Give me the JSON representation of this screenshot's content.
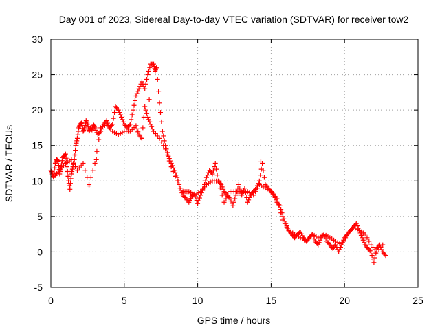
{
  "chart_data": {
    "type": "scatter",
    "title": "Day 001 of 2023, Sidereal Day-to-day VTEC variation (SDTVAR) for receiver tow2",
    "xlabel": "GPS time / hours",
    "ylabel": "SDTVAR / TECUs",
    "xlim": [
      0,
      25
    ],
    "ylim": [
      -5,
      30
    ],
    "grid": true,
    "marker": "+",
    "colors": {
      "series": "#ff0000",
      "grid": "#a0a0a0",
      "axis": "#000000"
    },
    "xticks": [
      {
        "value": 0,
        "label": "0"
      },
      {
        "value": 5,
        "label": "5"
      },
      {
        "value": 10,
        "label": "10"
      },
      {
        "value": 15,
        "label": "15"
      },
      {
        "value": 20,
        "label": "20"
      },
      {
        "value": 25,
        "label": "25"
      }
    ],
    "yticks": [
      {
        "value": -5,
        "label": "-5"
      },
      {
        "value": 0,
        "label": "0"
      },
      {
        "value": 5,
        "label": "5"
      },
      {
        "value": 10,
        "label": "10"
      },
      {
        "value": 15,
        "label": "15"
      },
      {
        "value": 20,
        "label": "20"
      },
      {
        "value": 25,
        "label": "25"
      },
      {
        "value": 30,
        "label": "30"
      }
    ],
    "series": [
      {
        "name": "SDTVAR",
        "x": [
          0.0,
          0.1,
          0.2,
          0.3,
          0.4,
          0.5,
          0.6,
          0.7,
          0.8,
          0.9,
          1.0,
          1.1,
          1.2,
          1.3,
          1.4,
          1.5,
          1.6,
          1.7,
          1.8,
          1.9,
          2.0,
          2.1,
          2.2,
          2.3,
          2.4,
          2.5,
          2.6,
          2.7,
          2.8,
          2.9,
          3.0,
          3.2,
          3.4,
          3.6,
          3.8,
          4.0,
          4.2,
          4.4,
          4.6,
          4.8,
          5.0,
          5.2,
          5.4,
          5.6,
          5.8,
          6.0,
          6.2,
          6.4,
          6.6,
          6.8,
          7.0,
          7.1,
          7.2,
          7.4,
          7.6,
          7.8,
          8.0,
          8.2,
          8.4,
          8.6,
          8.8,
          9.0,
          9.2,
          9.4,
          9.6,
          9.8,
          10.0,
          10.2,
          10.4,
          10.6,
          10.8,
          11.0,
          11.2,
          11.4,
          11.6,
          11.8,
          12.0,
          12.2,
          12.4,
          12.6,
          12.8,
          13.0,
          13.2,
          13.4,
          13.6,
          13.8,
          14.0,
          14.2,
          14.4,
          14.6,
          14.8,
          15.0,
          15.2,
          15.4,
          15.6,
          15.8,
          16.0,
          16.2,
          16.4,
          16.6,
          16.8,
          17.0,
          17.2,
          17.4,
          17.6,
          17.8,
          18.0,
          18.2,
          18.4,
          18.6,
          18.8,
          19.0,
          19.2,
          19.4,
          19.6,
          19.8,
          20.0,
          20.2,
          20.4,
          20.6,
          20.8,
          21.0,
          21.2,
          21.4,
          21.6,
          21.8,
          22.0,
          22.2,
          22.4,
          22.6,
          22.8,
          0.3,
          0.6,
          1.0,
          1.4,
          1.8,
          2.2,
          2.6,
          3.0,
          3.4,
          3.8,
          4.2,
          4.6,
          5.0,
          5.4,
          5.8,
          6.0,
          6.2,
          6.4,
          6.6,
          6.8,
          7.0,
          7.4,
          7.8,
          8.2,
          8.6,
          9.0,
          9.4,
          9.8,
          10.2,
          10.6,
          11.0,
          11.4,
          11.8,
          12.2,
          12.6,
          13.0,
          13.4,
          13.8,
          14.2,
          14.6,
          15.0,
          15.4,
          15.8,
          16.2,
          16.6,
          17.0,
          17.4,
          17.8,
          18.2,
          18.6,
          19.0,
          19.4,
          19.8,
          20.2,
          20.6,
          21.0,
          21.4,
          21.8,
          22.2,
          22.6,
          1.3,
          2.6,
          3.1,
          6.7,
          14.3
        ],
        "y": [
          11.5,
          11.0,
          10.5,
          12.5,
          13.0,
          12.8,
          11.0,
          12.0,
          13.3,
          13.5,
          13.8,
          12.0,
          10.0,
          9.0,
          11.0,
          12.0,
          13.0,
          15.0,
          16.0,
          17.5,
          18.0,
          18.2,
          17.0,
          17.5,
          18.5,
          18.0,
          17.0,
          17.5,
          17.2,
          18.0,
          17.5,
          16.5,
          17.0,
          18.0,
          18.5,
          17.5,
          18.0,
          20.5,
          20.0,
          19.0,
          18.0,
          17.5,
          18.0,
          20.0,
          22.0,
          23.0,
          24.0,
          23.0,
          25.0,
          26.5,
          26.5,
          25.5,
          26.0,
          21.0,
          17.0,
          15.0,
          13.5,
          12.5,
          11.5,
          10.5,
          9.0,
          8.0,
          7.5,
          7.0,
          7.8,
          8.2,
          6.8,
          8.0,
          9.0,
          10.5,
          11.5,
          11.0,
          12.5,
          10.0,
          9.5,
          8.5,
          8.0,
          7.5,
          6.5,
          8.0,
          9.5,
          8.0,
          9.0,
          7.0,
          8.0,
          8.5,
          9.0,
          10.0,
          12.5,
          9.5,
          9.0,
          8.5,
          8.0,
          7.0,
          6.5,
          5.0,
          4.0,
          3.0,
          2.5,
          2.0,
          2.5,
          2.8,
          2.0,
          1.5,
          2.0,
          2.5,
          1.5,
          1.0,
          2.0,
          2.5,
          1.5,
          1.0,
          0.5,
          1.0,
          0.0,
          1.0,
          2.0,
          2.5,
          3.0,
          3.5,
          4.0,
          3.0,
          2.0,
          1.0,
          0.5,
          0.0,
          -1.5,
          0.5,
          1.0,
          0.0,
          -0.5,
          10.8,
          11.5,
          12.5,
          13.0,
          11.5,
          12.5,
          9.5,
          12.5,
          17.5,
          18.0,
          17.0,
          16.5,
          17.0,
          17.0,
          17.8,
          16.5,
          16.0,
          20.5,
          19.0,
          18.0,
          17.0,
          16.0,
          14.5,
          12.0,
          10.0,
          8.5,
          8.5,
          8.0,
          8.5,
          9.5,
          10.0,
          10.0,
          7.0,
          8.5,
          8.5,
          8.5,
          8.5,
          8.0,
          9.5,
          9.0,
          8.5,
          7.5,
          4.5,
          3.0,
          2.5,
          2.0,
          1.5,
          2.5,
          2.0,
          2.5,
          2.0,
          1.5,
          1.0,
          2.5,
          3.5,
          3.0,
          2.5,
          1.0,
          0.0,
          1.0,
          8.8,
          9.3,
          13.0,
          21.5,
          12.7
        ]
      }
    ]
  }
}
